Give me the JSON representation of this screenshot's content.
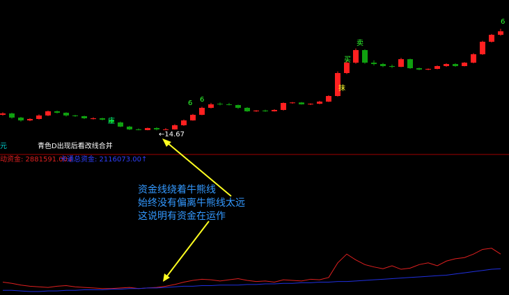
{
  "chart_data": [
    {
      "type": "candlestick",
      "ylim": [
        12,
        30
      ],
      "up_color": "#ff2020",
      "down_color": "#10a010",
      "candles": [
        [
          16.5,
          16.8,
          16.4,
          16.66
        ],
        [
          16.66,
          16.75,
          16.05,
          16.17
        ],
        [
          16.17,
          16.25,
          15.7,
          15.84
        ],
        [
          15.84,
          16.1,
          15.75,
          16.01
        ],
        [
          16.01,
          16.55,
          15.95,
          16.42
        ],
        [
          16.42,
          17.0,
          16.35,
          16.91
        ],
        [
          16.91,
          17.0,
          16.65,
          16.74
        ],
        [
          16.74,
          16.8,
          16.3,
          16.42
        ],
        [
          16.42,
          16.5,
          16.25,
          16.34
        ],
        [
          16.34,
          16.4,
          16.0,
          16.09
        ],
        [
          16.0,
          16.2,
          15.95,
          16.09
        ],
        [
          16.09,
          16.15,
          15.85,
          15.93
        ],
        [
          15.93,
          16.0,
          15.5,
          15.6
        ],
        [
          15.6,
          15.7,
          15.05,
          15.11
        ],
        [
          15.11,
          15.2,
          14.7,
          14.78
        ],
        [
          14.78,
          14.9,
          14.68,
          14.7
        ],
        [
          14.7,
          15.0,
          14.68,
          14.94
        ],
        [
          14.94,
          15.05,
          14.67,
          14.78
        ],
        [
          14.7,
          14.95,
          14.68,
          14.78
        ],
        [
          14.78,
          15.4,
          14.75,
          15.27
        ],
        [
          15.27,
          15.95,
          15.2,
          15.84
        ],
        [
          15.84,
          16.6,
          15.8,
          16.5
        ],
        [
          16.5,
          17.45,
          16.45,
          17.32
        ],
        [
          17.32,
          17.9,
          17.25,
          17.73
        ],
        [
          17.8,
          17.95,
          17.6,
          17.73
        ],
        [
          17.73,
          17.9,
          17.6,
          17.65
        ],
        [
          17.65,
          17.7,
          17.2,
          17.32
        ],
        [
          17.32,
          17.4,
          16.85,
          16.91
        ],
        [
          16.91,
          17.05,
          16.85,
          17.0
        ],
        [
          17.0,
          17.1,
          16.85,
          16.91
        ],
        [
          16.91,
          17.15,
          16.88,
          17.07
        ],
        [
          17.07,
          17.95,
          17.0,
          17.89
        ],
        [
          17.89,
          18.0,
          17.8,
          17.95
        ],
        [
          17.95,
          18.0,
          17.7,
          17.73
        ],
        [
          17.73,
          17.85,
          17.65,
          17.8
        ],
        [
          17.8,
          18.15,
          17.75,
          18.05
        ],
        [
          18.05,
          18.8,
          18.0,
          18.71
        ],
        [
          18.71,
          21.6,
          18.65,
          21.41
        ],
        [
          21.41,
          22.9,
          21.3,
          22.63
        ],
        [
          22.63,
          24.3,
          22.5,
          24.11
        ],
        [
          24.11,
          24.2,
          22.5,
          22.63
        ],
        [
          22.63,
          22.9,
          22.3,
          22.47
        ],
        [
          22.47,
          22.6,
          22.1,
          22.23
        ],
        [
          22.23,
          22.4,
          22.0,
          22.14
        ],
        [
          22.14,
          23.2,
          22.1,
          23.04
        ],
        [
          23.04,
          23.1,
          21.9,
          21.98
        ],
        [
          21.98,
          22.05,
          21.75,
          21.82
        ],
        [
          21.82,
          21.95,
          21.75,
          21.9
        ],
        [
          21.9,
          22.3,
          21.85,
          22.23
        ],
        [
          22.23,
          22.55,
          22.15,
          22.47
        ],
        [
          22.47,
          22.55,
          22.15,
          22.23
        ],
        [
          22.23,
          22.7,
          22.2,
          22.63
        ],
        [
          22.63,
          23.75,
          22.55,
          23.62
        ],
        [
          23.62,
          25.2,
          23.55,
          25.09
        ],
        [
          25.09,
          26.0,
          25.0,
          25.91
        ],
        [
          25.91,
          26.6,
          25.8,
          26.32
        ]
      ],
      "low_label": "←14.67",
      "markers": [
        "庄",
        "6",
        "6",
        "买",
        "卖",
        "抹",
        "6"
      ],
      "left_label": "元",
      "hint": "青色D出现后看改线合并",
      "annotation": [
        "资金线绕着牛熊线",
        "始终没有偏离牛熊线太远",
        "这说明有资金在运作"
      ]
    },
    {
      "type": "line",
      "ylim": [
        0,
        100
      ],
      "series": [
        {
          "name": "动资金: 2881591.00↓",
          "color": "#e02020",
          "values": [
            22,
            20,
            17,
            15,
            14,
            13,
            15,
            16,
            14,
            13,
            12,
            11,
            11,
            12,
            13,
            11,
            12,
            13,
            15,
            18,
            22,
            25,
            27,
            26,
            24,
            26,
            28,
            25,
            23,
            24,
            22,
            26,
            25,
            24,
            27,
            26,
            30,
            55,
            70,
            60,
            52,
            48,
            45,
            50,
            44,
            46,
            52,
            55,
            50,
            58,
            62,
            64,
            70,
            78,
            80,
            70
          ]
        },
        {
          "name": "卡通总资金: 2116073.00↑",
          "color": "#2030e0",
          "values": [
            8,
            8,
            7,
            6,
            6,
            7,
            7,
            8,
            8,
            9,
            9,
            9,
            10,
            10,
            11,
            11,
            12,
            12,
            13,
            14,
            15,
            15,
            16,
            16,
            17,
            17,
            17,
            18,
            18,
            19,
            19,
            20,
            20,
            21,
            21,
            22,
            22,
            23,
            23,
            24,
            25,
            26,
            27,
            28,
            29,
            30,
            31,
            32,
            33,
            34,
            36,
            38,
            40,
            42,
            44,
            45
          ]
        }
      ]
    }
  ]
}
